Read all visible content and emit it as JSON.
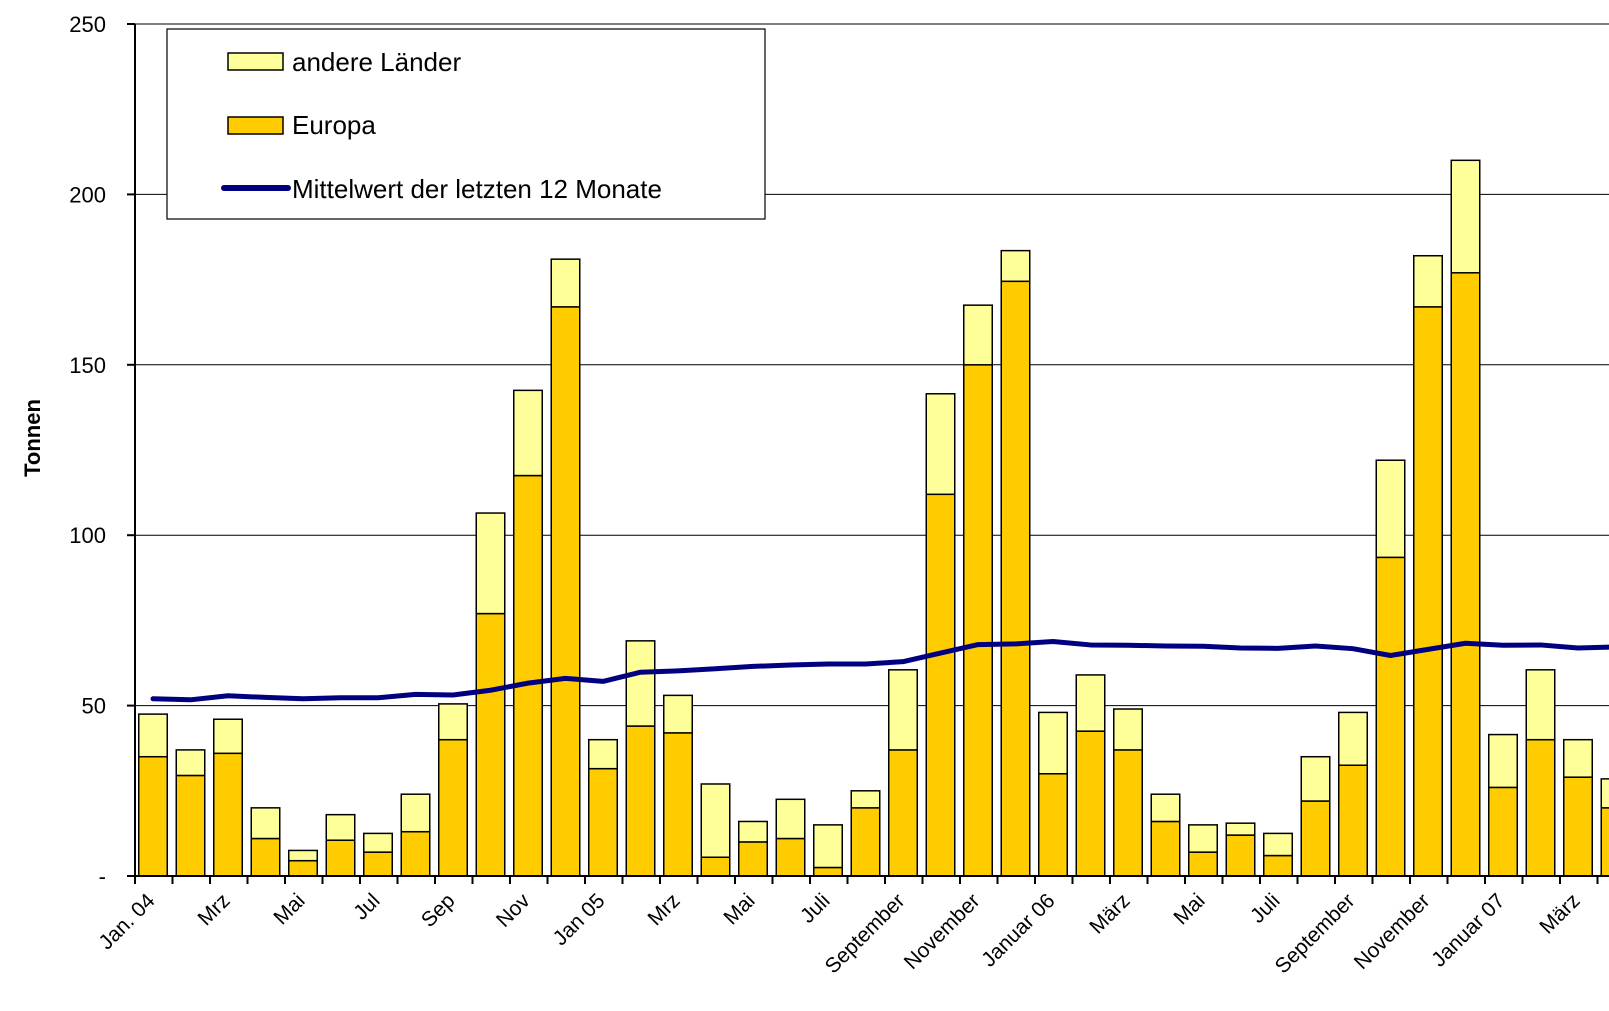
{
  "chart_data": {
    "type": "bar",
    "stacked": true,
    "ylabel": "Tonnen",
    "ylim": [
      0,
      250
    ],
    "yticks": [
      0,
      50,
      100,
      150,
      200,
      250
    ],
    "ytick_labels": [
      "-",
      "50",
      "100",
      "150",
      "200",
      "250"
    ],
    "grid": true,
    "legend_position": "top-left",
    "colors": {
      "andere": "#FFFF99",
      "europa": "#FFCC00",
      "line": "#000080"
    },
    "series": [
      {
        "name": "andere Länder",
        "values": [
          12.5,
          7.5,
          10,
          9,
          3,
          7.5,
          5.5,
          11,
          10.5,
          29.5,
          25,
          14,
          8.5,
          25,
          11,
          21.5,
          6,
          11.5,
          12.5,
          5,
          23.5,
          29.5,
          17.5,
          9,
          18,
          16.5,
          12,
          8,
          8,
          3.5,
          6.5,
          13,
          15.5,
          28.5,
          15,
          33,
          15.5,
          20.5,
          11,
          8.5
        ]
      },
      {
        "name": "Europa",
        "values": [
          35,
          29.5,
          36,
          11,
          4.5,
          10.5,
          7,
          13,
          40,
          77,
          117.5,
          167,
          31.5,
          44,
          42,
          5.5,
          10,
          11,
          2.5,
          20,
          37,
          112,
          150,
          174.5,
          30,
          42.5,
          37,
          16,
          7,
          12,
          6,
          22,
          32.5,
          93.5,
          167,
          177,
          26,
          40,
          29,
          20
        ]
      },
      {
        "name": "Mittelwert der letzten 12 Monate",
        "type": "line",
        "values": [
          52,
          51.7,
          52.9,
          52.4,
          52,
          52.3,
          52.3,
          53.3,
          53.1,
          54.5,
          56.6,
          58,
          57.1,
          59.8,
          60.2,
          60.8,
          61.5,
          61.9,
          62.2,
          62.2,
          62.9,
          65.4,
          67.9,
          68.1,
          68.8,
          67.8,
          67.7,
          67.5,
          67.4,
          66.9,
          66.8,
          67.5,
          66.7,
          64.7,
          66.5,
          68.3,
          67.7,
          67.8,
          66.9,
          67.2
        ]
      }
    ],
    "categories": [
      "Jan. 04",
      "",
      "Mrz",
      "",
      "Mai",
      "",
      "Jul",
      "",
      "Sep",
      "",
      "Nov",
      "",
      "Jan 05",
      "",
      "Mrz",
      "",
      "Mai",
      "",
      "Juli",
      "",
      "September",
      "",
      "November",
      "",
      "Januar 06",
      "",
      "März",
      "",
      "Mai",
      "",
      "Juli",
      "",
      "September",
      "",
      "November",
      "",
      "Januar 07",
      "",
      "März",
      ""
    ]
  }
}
